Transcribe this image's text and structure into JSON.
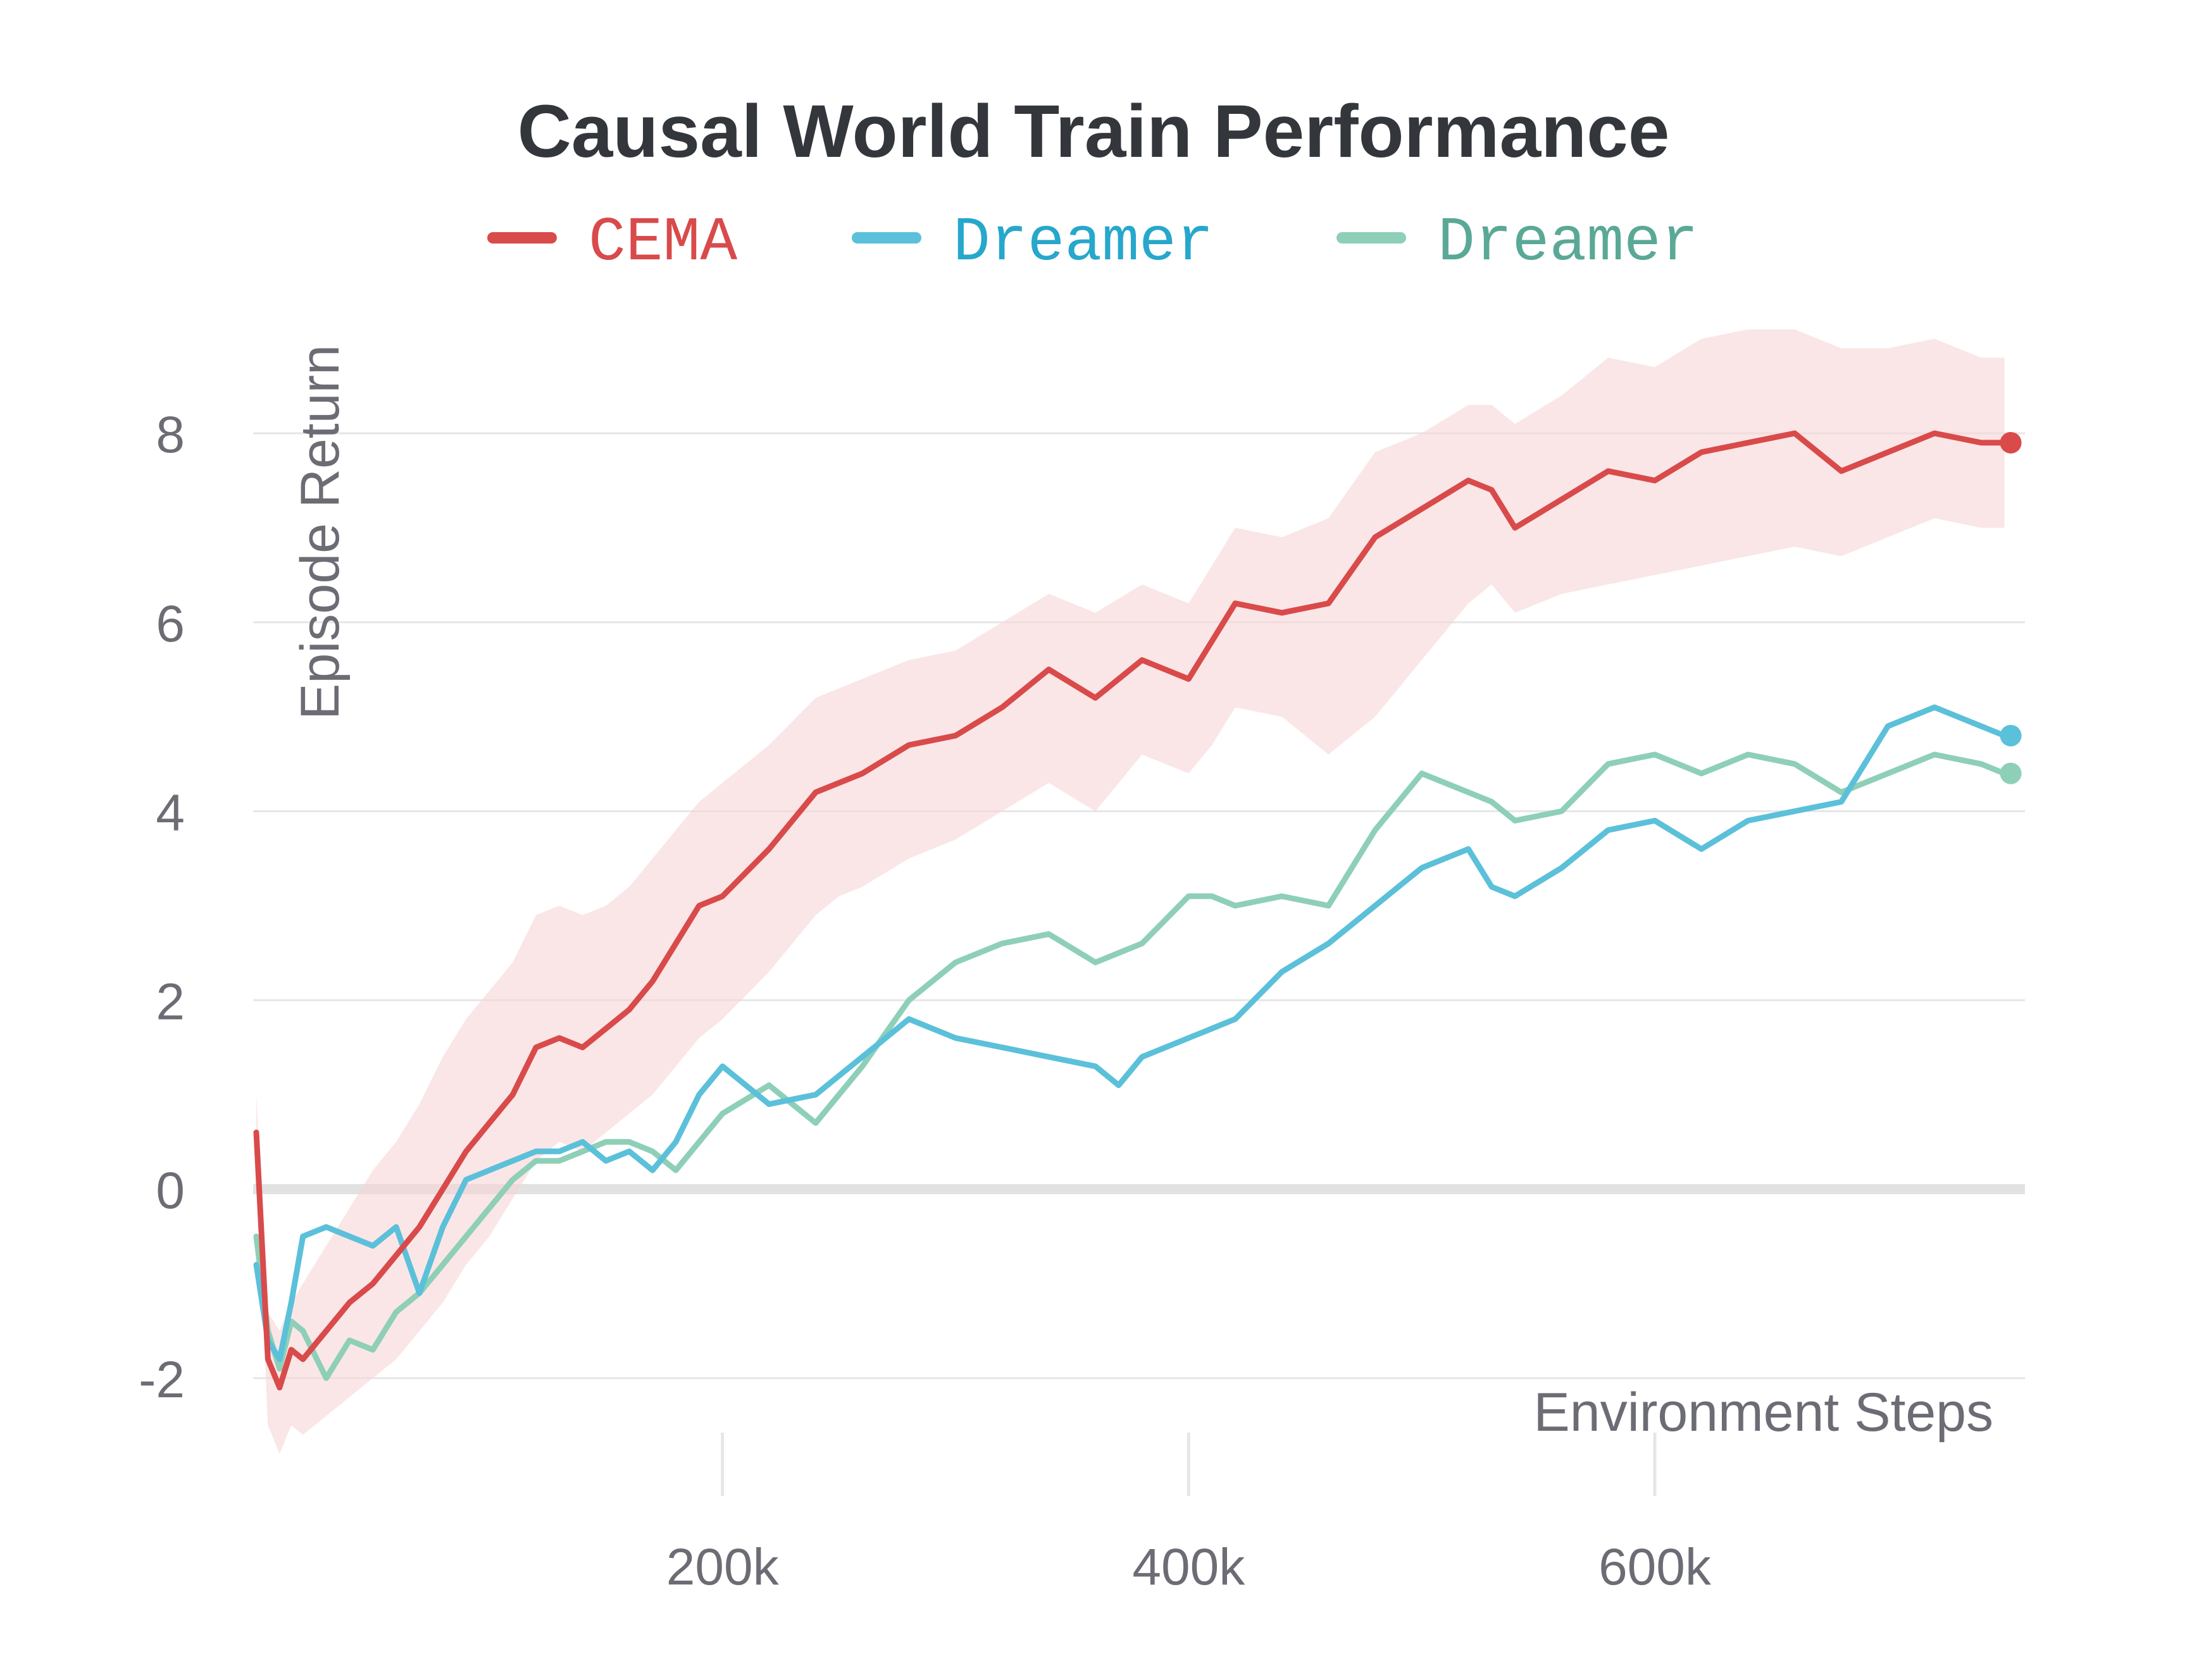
{
  "chart_data": {
    "type": "line",
    "title": "Causal World Train Performance",
    "xlabel": "Environment Steps",
    "ylabel": "Episode Return",
    "xlim": [
      0,
      760000
    ],
    "ylim": [
      -2.7,
      9.5
    ],
    "x_ticks": [
      {
        "value": 200000,
        "label": "200k"
      },
      {
        "value": 400000,
        "label": "400k"
      },
      {
        "value": 600000,
        "label": "600k"
      }
    ],
    "y_ticks": [
      {
        "value": -2,
        "label": "-2"
      },
      {
        "value": 0,
        "label": "0"
      },
      {
        "value": 2,
        "label": "2"
      },
      {
        "value": 4,
        "label": "4"
      },
      {
        "value": 6,
        "label": "6"
      },
      {
        "value": 8,
        "label": "8"
      }
    ],
    "grid": true,
    "legend": "top",
    "series": [
      {
        "name": "CEMA",
        "color": "#d94a4b",
        "band_color": "#f6d5d6",
        "x": [
          0,
          5000,
          10000,
          15000,
          20000,
          30000,
          40000,
          50000,
          60000,
          70000,
          80000,
          90000,
          100000,
          110000,
          120000,
          130000,
          140000,
          150000,
          160000,
          170000,
          180000,
          190000,
          200000,
          220000,
          240000,
          250000,
          260000,
          280000,
          300000,
          320000,
          340000,
          360000,
          380000,
          400000,
          410000,
          420000,
          440000,
          460000,
          480000,
          500000,
          520000,
          530000,
          540000,
          560000,
          580000,
          600000,
          620000,
          640000,
          660000,
          680000,
          700000,
          720000,
          740000,
          750000
        ],
        "y": [
          0.6,
          -1.8,
          -2.1,
          -1.7,
          -1.8,
          -1.5,
          -1.2,
          -1.0,
          -0.7,
          -0.4,
          0.0,
          0.4,
          0.7,
          1.0,
          1.5,
          1.6,
          1.5,
          1.7,
          1.9,
          2.2,
          2.6,
          3.0,
          3.1,
          3.6,
          4.2,
          4.3,
          4.4,
          4.7,
          4.8,
          5.1,
          5.5,
          5.2,
          5.6,
          5.4,
          5.8,
          6.2,
          6.1,
          6.2,
          6.9,
          7.2,
          7.5,
          7.4,
          7.0,
          7.3,
          7.6,
          7.5,
          7.8,
          7.9,
          8.0,
          7.6,
          7.8,
          8.0,
          7.9,
          7.9
        ],
        "upper": [
          1.0,
          -1.3,
          -1.5,
          -1.2,
          -1.0,
          -0.6,
          -0.2,
          0.2,
          0.5,
          0.9,
          1.4,
          1.8,
          2.1,
          2.4,
          2.9,
          3.0,
          2.9,
          3.0,
          3.2,
          3.5,
          3.8,
          4.1,
          4.3,
          4.7,
          5.2,
          5.3,
          5.4,
          5.6,
          5.7,
          6.0,
          6.3,
          6.1,
          6.4,
          6.2,
          6.6,
          7.0,
          6.9,
          7.1,
          7.8,
          8.0,
          8.3,
          8.3,
          8.1,
          8.4,
          8.8,
          8.7,
          9.0,
          9.1,
          9.1,
          8.9,
          8.9,
          9.0,
          8.8,
          8.8
        ],
        "lower": [
          0.2,
          -2.5,
          -2.8,
          -2.5,
          -2.6,
          -2.4,
          -2.2,
          -2.0,
          -1.8,
          -1.5,
          -1.2,
          -0.8,
          -0.5,
          -0.1,
          0.3,
          0.5,
          0.4,
          0.6,
          0.8,
          1.0,
          1.3,
          1.6,
          1.8,
          2.3,
          2.9,
          3.1,
          3.2,
          3.5,
          3.7,
          4.0,
          4.3,
          4.0,
          4.6,
          4.4,
          4.7,
          5.1,
          5.0,
          4.6,
          5.0,
          5.6,
          6.2,
          6.4,
          6.1,
          6.3,
          6.4,
          6.5,
          6.6,
          6.7,
          6.8,
          6.7,
          6.9,
          7.1,
          7.0,
          7.0
        ]
      },
      {
        "name": "Dreamer",
        "color": "#5bc0d9",
        "legend_text_color": "#27a7cb",
        "x": [
          0,
          5000,
          10000,
          15000,
          20000,
          30000,
          40000,
          50000,
          60000,
          70000,
          80000,
          90000,
          100000,
          110000,
          120000,
          130000,
          140000,
          150000,
          160000,
          170000,
          180000,
          190000,
          200000,
          220000,
          240000,
          250000,
          260000,
          280000,
          300000,
          320000,
          340000,
          360000,
          370000,
          380000,
          400000,
          410000,
          420000,
          440000,
          460000,
          480000,
          500000,
          520000,
          530000,
          540000,
          560000,
          580000,
          600000,
          620000,
          640000,
          660000,
          680000,
          700000,
          720000,
          740000,
          750000
        ],
        "y": [
          -0.8,
          -1.6,
          -1.8,
          -1.2,
          -0.5,
          -0.4,
          -0.5,
          -0.6,
          -0.4,
          -1.1,
          -0.4,
          0.1,
          0.2,
          0.3,
          0.4,
          0.4,
          0.5,
          0.3,
          0.4,
          0.2,
          0.5,
          1.0,
          1.3,
          0.9,
          1.0,
          1.2,
          1.4,
          1.8,
          1.6,
          1.5,
          1.4,
          1.3,
          1.1,
          1.4,
          1.6,
          1.7,
          1.8,
          2.3,
          2.6,
          3.0,
          3.4,
          3.6,
          3.2,
          3.1,
          3.4,
          3.8,
          3.9,
          3.6,
          3.9,
          4.0,
          4.1,
          4.9,
          5.1,
          4.9,
          4.8
        ]
      },
      {
        "name": "Dreamer",
        "color": "#8ecfb7",
        "legend_text_color": "#5aa896",
        "x": [
          0,
          5000,
          10000,
          15000,
          20000,
          30000,
          40000,
          50000,
          60000,
          70000,
          80000,
          90000,
          100000,
          110000,
          120000,
          130000,
          140000,
          150000,
          160000,
          170000,
          180000,
          190000,
          200000,
          220000,
          240000,
          250000,
          260000,
          280000,
          300000,
          320000,
          340000,
          360000,
          380000,
          400000,
          410000,
          420000,
          440000,
          460000,
          480000,
          500000,
          520000,
          530000,
          540000,
          560000,
          580000,
          600000,
          620000,
          640000,
          660000,
          680000,
          700000,
          720000,
          740000,
          750000
        ],
        "y": [
          -0.5,
          -1.5,
          -1.9,
          -1.4,
          -1.5,
          -2.0,
          -1.6,
          -1.7,
          -1.3,
          -1.1,
          -0.8,
          -0.5,
          -0.2,
          0.1,
          0.3,
          0.3,
          0.4,
          0.5,
          0.5,
          0.4,
          0.2,
          0.5,
          0.8,
          1.1,
          0.7,
          1.0,
          1.3,
          2.0,
          2.4,
          2.6,
          2.7,
          2.4,
          2.6,
          3.1,
          3.1,
          3.0,
          3.1,
          3.0,
          3.8,
          4.4,
          4.2,
          4.1,
          3.9,
          4.0,
          4.5,
          4.6,
          4.4,
          4.6,
          4.5,
          4.2,
          4.4,
          4.6,
          4.5,
          4.4
        ]
      }
    ]
  }
}
